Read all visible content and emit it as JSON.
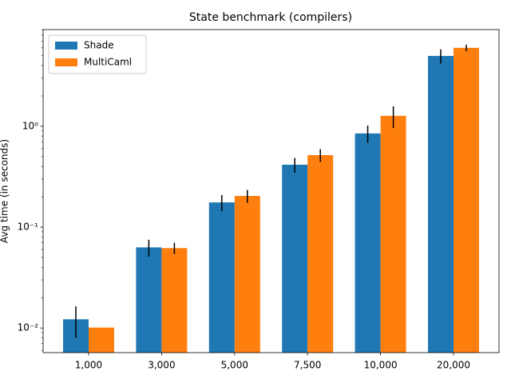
{
  "chart_data": {
    "type": "bar",
    "title": "State benchmark (compilers)",
    "y_label": "Avg time (in seconds)",
    "categories": [
      "1,000",
      "3,000",
      "5,000",
      "7,500",
      "10,000",
      "20,000"
    ],
    "series": [
      {
        "name": "Shade",
        "color": "#1f77b4",
        "values": [
          0.0122,
          0.063,
          0.176,
          0.416,
          0.85,
          4.99
        ],
        "errors": [
          0.0042,
          0.012,
          0.032,
          0.07,
          0.165,
          0.8
        ]
      },
      {
        "name": "MultiCaml",
        "color": "#ff7f0e",
        "values": [
          0.0101,
          0.062,
          0.204,
          0.518,
          1.27,
          6.0
        ],
        "errors": [
          0,
          0.008,
          0.03,
          0.075,
          0.31,
          0.45
        ]
      }
    ],
    "log_y": true,
    "ylim": [
      0.0057,
      9.1
    ],
    "yticks": [
      {
        "value": 0.01,
        "label": "10⁻²"
      },
      {
        "value": 0.1,
        "label": "10⁻¹"
      },
      {
        "value": 1,
        "label": "10⁰"
      }
    ],
    "legend": "upper-left",
    "error_color": "#000000"
  }
}
